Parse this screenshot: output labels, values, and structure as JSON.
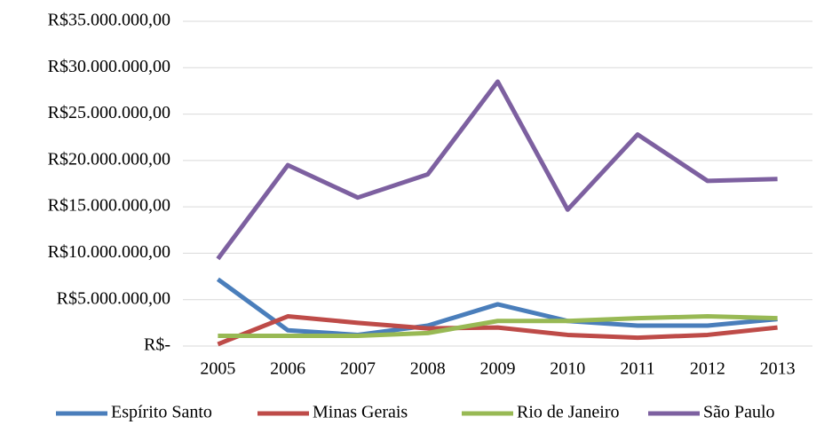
{
  "chart_data": {
    "type": "line",
    "categories": [
      "2005",
      "2006",
      "2007",
      "2008",
      "2009",
      "2010",
      "2011",
      "2012",
      "2013"
    ],
    "series": [
      {
        "name": "Espírito Santo",
        "color": "#4a7ebb",
        "values": [
          7200000,
          1700000,
          1200000,
          2200000,
          4500000,
          2700000,
          2200000,
          2200000,
          2900000
        ]
      },
      {
        "name": "Minas Gerais",
        "color": "#be4b48",
        "values": [
          200000,
          3200000,
          2500000,
          1900000,
          2000000,
          1200000,
          900000,
          1200000,
          2000000
        ]
      },
      {
        "name": "Rio de Janeiro",
        "color": "#98b954",
        "values": [
          1100000,
          1100000,
          1100000,
          1400000,
          2700000,
          2700000,
          3000000,
          3200000,
          3000000
        ]
      },
      {
        "name": "São Paulo",
        "color": "#7d60a0",
        "values": [
          9400000,
          19500000,
          16000000,
          18500000,
          28500000,
          14700000,
          22800000,
          17800000,
          18000000
        ]
      }
    ],
    "ylim": [
      0,
      35000000
    ],
    "yticks": [
      {
        "value": 0,
        "label": "R$-"
      },
      {
        "value": 5000000,
        "label": "R$5.000.000,00"
      },
      {
        "value": 10000000,
        "label": "R$10.000.000,00"
      },
      {
        "value": 15000000,
        "label": "R$15.000.000,00"
      },
      {
        "value": 20000000,
        "label": "R$20.000.000,00"
      },
      {
        "value": 25000000,
        "label": "R$25.000.000,00"
      },
      {
        "value": 30000000,
        "label": "R$30.000.000,00"
      },
      {
        "value": 35000000,
        "label": "R$35.000.000,00"
      }
    ],
    "grid": true,
    "legend": "bottom"
  }
}
